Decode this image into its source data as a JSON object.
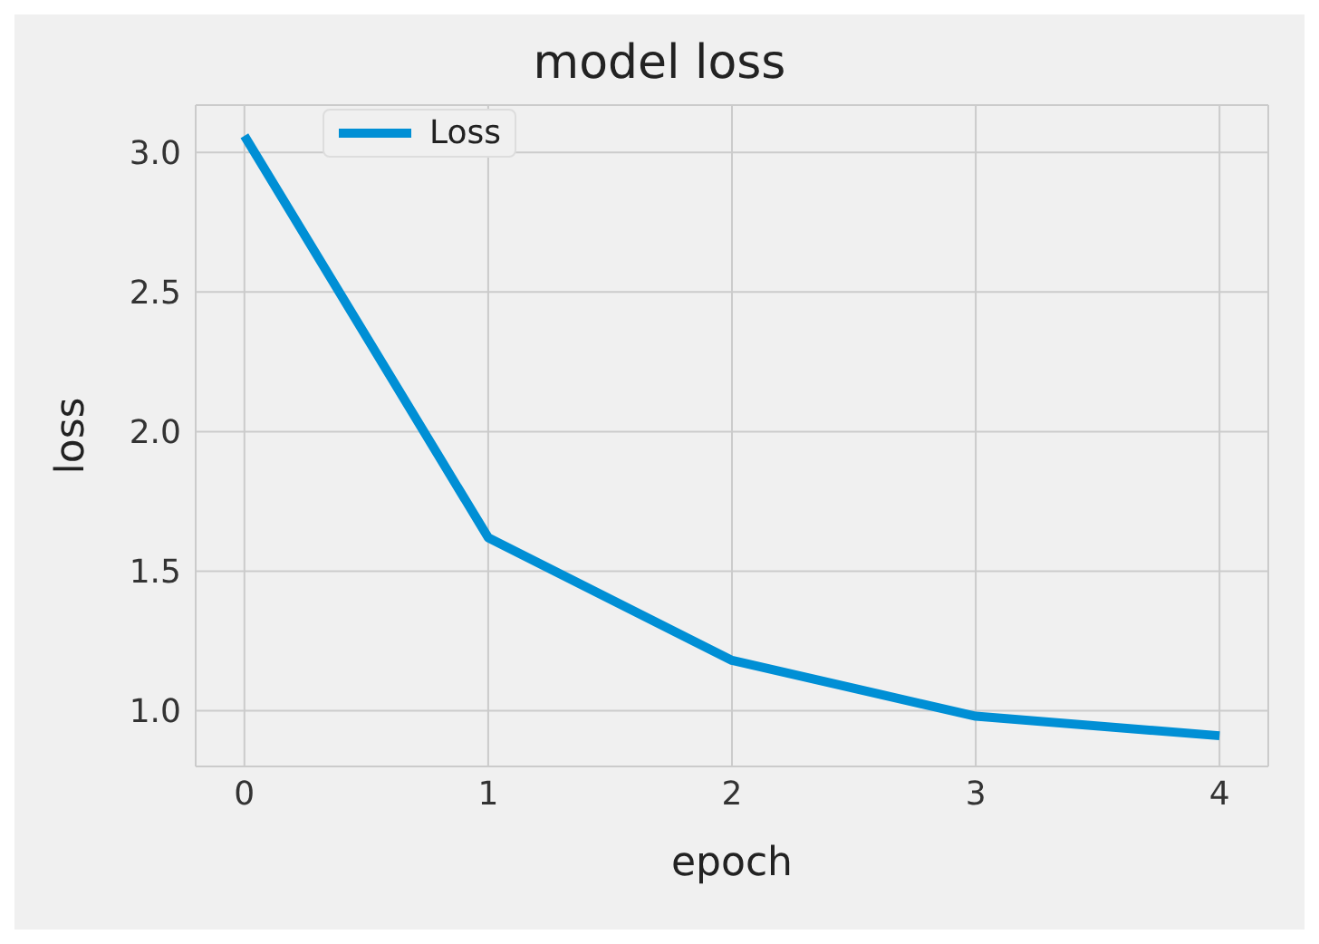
{
  "chart_data": {
    "type": "line",
    "title": "model loss",
    "xlabel": "epoch",
    "ylabel": "loss",
    "x": [
      0,
      1,
      2,
      3,
      4
    ],
    "series": [
      {
        "name": "Loss",
        "color": "#008fd5",
        "values": [
          3.06,
          1.62,
          1.18,
          0.98,
          0.91
        ]
      }
    ],
    "xlim": [
      -0.2,
      4.2
    ],
    "xticks": [
      0,
      1,
      2,
      3,
      4
    ],
    "ylim": [
      0.8,
      3.17
    ],
    "yticks": [
      {
        "value": 1,
        "label": "1.0"
      },
      {
        "value": 1.5,
        "label": "1.5"
      },
      {
        "value": 2,
        "label": "2.0"
      },
      {
        "value": 2.5,
        "label": "2.5"
      },
      {
        "value": 3,
        "label": "3.0"
      }
    ],
    "grid": true,
    "legend": "top left",
    "marker": "none",
    "line_style": "solid"
  }
}
